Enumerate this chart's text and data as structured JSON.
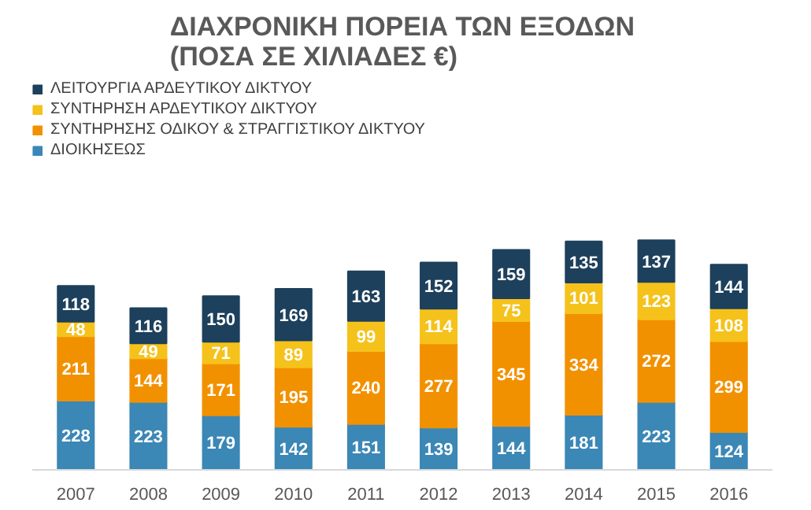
{
  "chart_data": {
    "type": "bar",
    "title": "ΔΙΑΧΡΟΝΙΚΗ ΠΟΡΕΙΑ ΤΩΝ ΕΞΟΔΩΝ (ΠΟΣΑ ΣΕ ΧΙΛΙΑΔΕΣ €)",
    "stacked": true,
    "data_labels": true,
    "legend": "top",
    "categories": [
      "2007",
      "2008",
      "2009",
      "2010",
      "2011",
      "2012",
      "2013",
      "2014",
      "2015",
      "2016"
    ],
    "series": [
      {
        "name": "ΔΙΟΙΚΗΣΕΩΣ",
        "color": "#3b87b6",
        "values": [
          228,
          223,
          179,
          142,
          151,
          139,
          144,
          181,
          223,
          124
        ]
      },
      {
        "name": "ΣΥΝΤΗΡΗΣΗΣ ΟΔΙΚΟΥ & ΣΤΡΑΓΓΙΣΤΙΚΟΥ ΔΙΚΤΥΟΥ",
        "color": "#f29100",
        "values": [
          211,
          144,
          171,
          195,
          240,
          277,
          345,
          334,
          272,
          299
        ]
      },
      {
        "name": "ΣΥΝΤΗΡΗΣΗ ΑΡΔΕΥΤΙΚΟΥ ΔΙΚΤΥΟΥ",
        "color": "#f5c21b",
        "values": [
          48,
          49,
          71,
          89,
          99,
          114,
          75,
          101,
          123,
          108
        ]
      },
      {
        "name": "ΛΕΙΤΟΥΡΓΙΑ ΑΡΔΕΥΤΙΚΟΥ ΔΙΚΤΥΟΥ",
        "color": "#1d405c",
        "values": [
          118,
          116,
          150,
          169,
          163,
          152,
          159,
          135,
          137,
          144
        ]
      }
    ]
  }
}
